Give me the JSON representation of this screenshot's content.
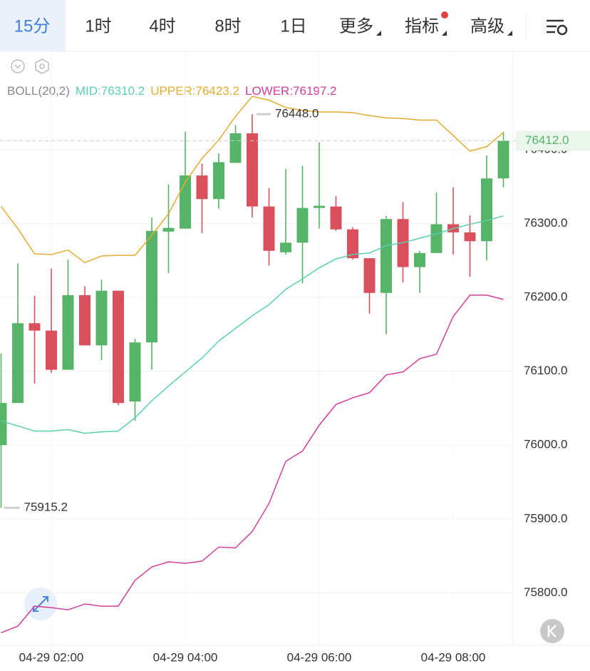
{
  "tabs": [
    "15分",
    "1时",
    "4时",
    "8时",
    "1日",
    "更多",
    "指标",
    "高级"
  ],
  "chart_data": {
    "type": "candlestick",
    "indicator": "BOLL(20,2)",
    "categories": [
      null,
      null,
      null,
      "04-29 02:00",
      null,
      null,
      null,
      null,
      null,
      null,
      null,
      "04-29 04:00",
      null,
      null,
      null,
      null,
      null,
      null,
      null,
      "04-29 06:00",
      null,
      null,
      null,
      null,
      null,
      null,
      null,
      "04-29 08:00",
      null,
      null,
      null
    ],
    "open": [
      76000,
      76057,
      76165,
      76155,
      76102,
      76203,
      76135,
      76209,
      76059,
      76139,
      76289,
      76293,
      76365,
      76333,
      76382,
      76422,
      76323,
      76261,
      76274,
      76321,
      76323,
      76292,
      76253,
      76206,
      76306,
      76241,
      76260,
      76299,
      76288,
      76276,
      76361
    ],
    "high": [
      76124,
      76246,
      76202,
      76239,
      76251,
      76215,
      76224,
      76209,
      76144,
      76308,
      76353,
      76424,
      76381,
      76395,
      76433,
      76448,
      76348,
      76374,
      76378,
      76410,
      76337,
      76295,
      76253,
      76310,
      76329,
      76263,
      76342,
      76349,
      76311,
      76392,
      76424
    ],
    "low": [
      75915.2,
      76057,
      76083,
      76098,
      76102,
      76135,
      76115,
      76054,
      76033,
      76102,
      76233,
      76293,
      76287,
      76320,
      76382,
      76308,
      76243,
      76258,
      76219,
      76293,
      76290,
      76251,
      76178,
      76150,
      76220,
      76206,
      76260,
      76258,
      76228,
      76250,
      76349
    ],
    "close": [
      76057,
      76165,
      76155,
      76102,
      76203,
      76135,
      76209,
      76057,
      76139,
      76290,
      76294,
      76365,
      76333,
      76383,
      76422,
      76323,
      76263,
      76274,
      76321,
      76324,
      76292,
      76253,
      76206,
      76306,
      76241,
      76260,
      76299,
      76288,
      76276,
      76361,
      76412
    ],
    "up_color": "#55b467",
    "down_color": "#d9505c",
    "series": [
      {
        "name": "MID:76310.2",
        "color": "#5ccfb0",
        "values": [
          76033,
          76026,
          76019,
          76019,
          76021,
          76016,
          76018,
          76019,
          76037,
          76060,
          76080,
          76099,
          76118,
          76141,
          76158,
          76175,
          76190,
          76211,
          76225,
          76240,
          76252,
          76258,
          76260,
          76270,
          76274,
          76280,
          76286,
          76293,
          76299,
          76304,
          76310.2
        ]
      },
      {
        "name": "UPPER:76423.2",
        "color": "#e4ac2e",
        "values": [
          76323,
          76293,
          76259,
          76258,
          76264,
          76247,
          76256,
          76257,
          76257,
          76284,
          76313,
          76356,
          76388,
          76413,
          76445,
          76472,
          76467,
          76457,
          76453,
          76451,
          76451,
          76450,
          76446,
          76443,
          76442,
          76440,
          76440,
          76419,
          76398,
          76404,
          76423.2
        ]
      },
      {
        "name": "LOWER:76197.2",
        "color": "#d23f9c",
        "values": [
          75746,
          75755,
          75782,
          75780,
          75777,
          75785,
          75782,
          75782,
          75817,
          75835,
          75842,
          75840,
          75843,
          75862,
          75861,
          75883,
          75921,
          75978,
          75992,
          76027,
          76055,
          76064,
          76071,
          76095,
          76099,
          76117,
          76123,
          76174,
          76203,
          76203,
          76197.2
        ]
      }
    ],
    "ylim": [
      75729,
      76533
    ],
    "yticks": [
      {
        "value": 75800,
        "label": "75800.0"
      },
      {
        "value": 75900,
        "label": "75900.0"
      },
      {
        "value": 76000,
        "label": "76000.0"
      },
      {
        "value": 76100,
        "label": "76100.0"
      },
      {
        "value": 76200,
        "label": "76200.0"
      },
      {
        "value": 76300,
        "label": "76300.0"
      },
      {
        "value": 76400,
        "label": "76400.0"
      }
    ],
    "grid": true,
    "high_marker": {
      "value": 76448,
      "label": "76448.0"
    },
    "low_marker": {
      "value": 75915.2,
      "label": "75915.2"
    },
    "last_price": {
      "value": 76412,
      "label": "76412.0",
      "color": "#55b467"
    }
  }
}
